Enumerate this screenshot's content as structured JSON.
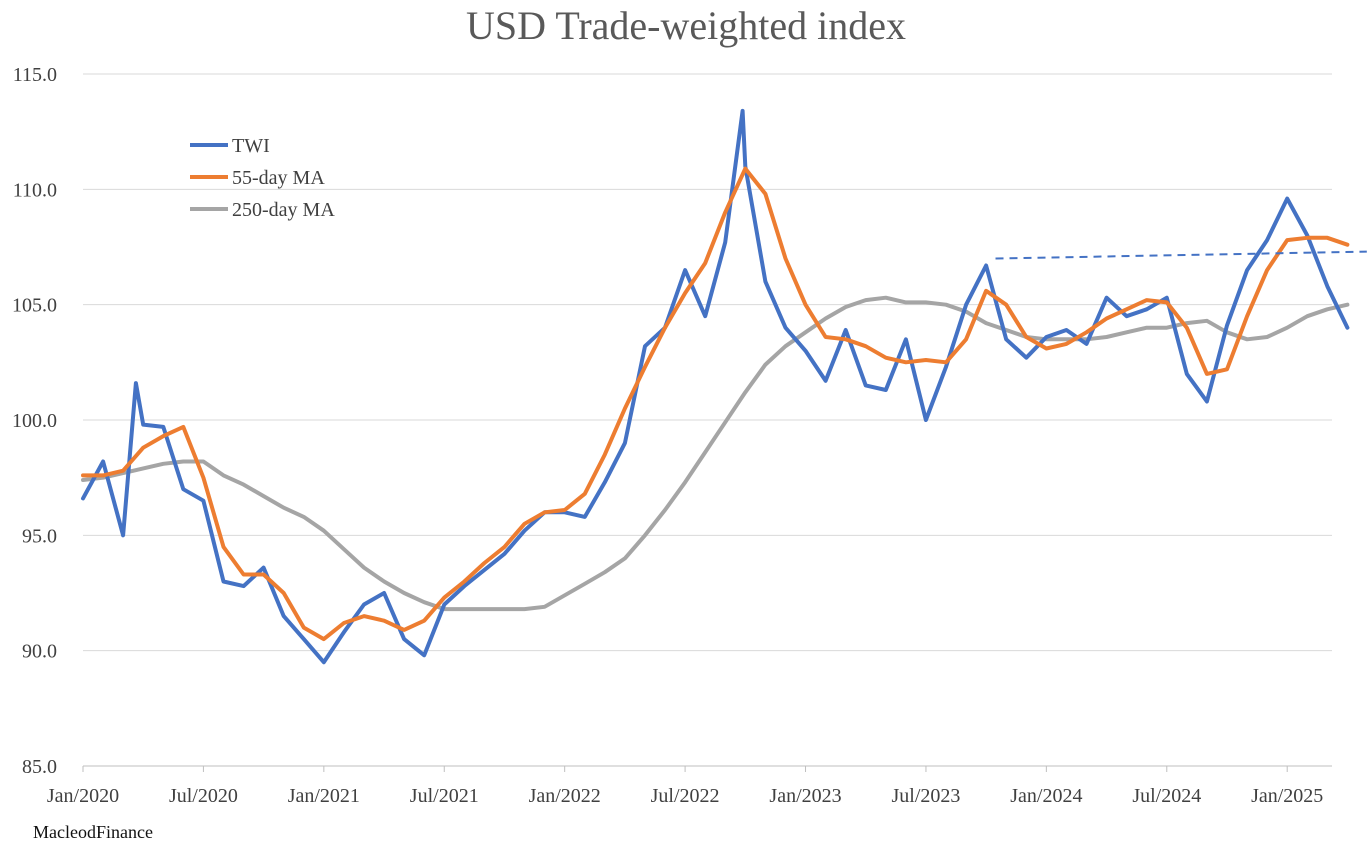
{
  "chart_data": {
    "type": "line",
    "title": "USD Trade-weighted index",
    "xlabel": "",
    "ylabel": "",
    "x_ticks": [
      "Jan/2020",
      "Jul/2020",
      "Jan/2021",
      "Jul/2021",
      "Jan/2022",
      "Jul/2022",
      "Jan/2023",
      "Jul/2023",
      "Jan/2024",
      "Jul/2024",
      "Jan/2025"
    ],
    "y_ticks": [
      "85.0",
      "90.0",
      "95.0",
      "100.0",
      "105.0",
      "110.0",
      "115.0"
    ],
    "ylim": [
      85,
      115
    ],
    "xlim": [
      "2020-01",
      "2025-04"
    ],
    "grid": "horizontal",
    "legend_position": "top-left",
    "series": [
      {
        "name": "TWI",
        "color": "#4472C4",
        "x": [
          "2020-01",
          "2020-02",
          "2020-03",
          "2020-03-20",
          "2020-04",
          "2020-05",
          "2020-06",
          "2020-07",
          "2020-08",
          "2020-09",
          "2020-10",
          "2020-11",
          "2020-12",
          "2021-01",
          "2021-02",
          "2021-03",
          "2021-04",
          "2021-05",
          "2021-06",
          "2021-07",
          "2021-08",
          "2021-09",
          "2021-10",
          "2021-11",
          "2021-12",
          "2022-01",
          "2022-02",
          "2022-03",
          "2022-04",
          "2022-05",
          "2022-06",
          "2022-07",
          "2022-08",
          "2022-09",
          "2022-09-27",
          "2022-10",
          "2022-11",
          "2022-12",
          "2023-01",
          "2023-02",
          "2023-03",
          "2023-04",
          "2023-05",
          "2023-06",
          "2023-07",
          "2023-08",
          "2023-09",
          "2023-10",
          "2023-11",
          "2023-12",
          "2024-01",
          "2024-02",
          "2024-03",
          "2024-04",
          "2024-05",
          "2024-06",
          "2024-07",
          "2024-08",
          "2024-09",
          "2024-10",
          "2024-11",
          "2024-12",
          "2025-01",
          "2025-02",
          "2025-03",
          "2025-04"
        ],
        "values": [
          96.6,
          98.2,
          95.0,
          101.6,
          99.8,
          99.7,
          97.0,
          96.5,
          93.0,
          92.8,
          93.6,
          91.5,
          90.5,
          89.5,
          90.8,
          92.0,
          92.5,
          90.5,
          89.8,
          92.0,
          92.8,
          93.5,
          94.2,
          95.2,
          96.0,
          96.0,
          95.8,
          97.3,
          99.0,
          103.2,
          104.0,
          106.5,
          104.5,
          107.7,
          113.4,
          111.0,
          106.0,
          104.0,
          103.0,
          101.7,
          103.9,
          101.5,
          101.3,
          103.5,
          100.0,
          102.3,
          105.0,
          106.7,
          103.5,
          102.7,
          103.6,
          103.9,
          103.3,
          105.3,
          104.5,
          104.8,
          105.3,
          102.0,
          100.8,
          104.1,
          106.5,
          107.8,
          109.6,
          108.0,
          105.8,
          104.0
        ]
      },
      {
        "name": "55-day MA",
        "color": "#ED7D31",
        "x": [
          "2020-01",
          "2020-02",
          "2020-03",
          "2020-04",
          "2020-05",
          "2020-06",
          "2020-07",
          "2020-08",
          "2020-09",
          "2020-10",
          "2020-11",
          "2020-12",
          "2021-01",
          "2021-02",
          "2021-03",
          "2021-04",
          "2021-05",
          "2021-06",
          "2021-07",
          "2021-08",
          "2021-09",
          "2021-10",
          "2021-11",
          "2021-12",
          "2022-01",
          "2022-02",
          "2022-03",
          "2022-04",
          "2022-05",
          "2022-06",
          "2022-07",
          "2022-08",
          "2022-09",
          "2022-10",
          "2022-11",
          "2022-12",
          "2023-01",
          "2023-02",
          "2023-03",
          "2023-04",
          "2023-05",
          "2023-06",
          "2023-07",
          "2023-08",
          "2023-09",
          "2023-10",
          "2023-11",
          "2023-12",
          "2024-01",
          "2024-02",
          "2024-03",
          "2024-04",
          "2024-05",
          "2024-06",
          "2024-07",
          "2024-08",
          "2024-09",
          "2024-10",
          "2024-11",
          "2024-12",
          "2025-01",
          "2025-02",
          "2025-03",
          "2025-04"
        ],
        "values": [
          97.6,
          97.6,
          97.8,
          98.8,
          99.3,
          99.7,
          97.5,
          94.5,
          93.3,
          93.3,
          92.5,
          91.0,
          90.5,
          91.2,
          91.5,
          91.3,
          90.9,
          91.3,
          92.3,
          93.0,
          93.8,
          94.5,
          95.5,
          96.0,
          96.1,
          96.8,
          98.5,
          100.5,
          102.3,
          104.0,
          105.5,
          106.8,
          109.0,
          110.9,
          109.8,
          107.0,
          105.0,
          103.6,
          103.5,
          103.2,
          102.7,
          102.5,
          102.6,
          102.5,
          103.5,
          105.6,
          105.0,
          103.6,
          103.1,
          103.3,
          103.8,
          104.4,
          104.8,
          105.2,
          105.1,
          104.0,
          102.0,
          102.2,
          104.5,
          106.5,
          107.8,
          107.9,
          107.9,
          107.6
        ]
      },
      {
        "name": "250-day MA",
        "color": "#A5A5A5",
        "x": [
          "2020-01",
          "2020-02",
          "2020-03",
          "2020-04",
          "2020-05",
          "2020-06",
          "2020-07",
          "2020-08",
          "2020-09",
          "2020-10",
          "2020-11",
          "2020-12",
          "2021-01",
          "2021-02",
          "2021-03",
          "2021-04",
          "2021-05",
          "2021-06",
          "2021-07",
          "2021-08",
          "2021-09",
          "2021-10",
          "2021-11",
          "2021-12",
          "2022-01",
          "2022-02",
          "2022-03",
          "2022-04",
          "2022-05",
          "2022-06",
          "2022-07",
          "2022-08",
          "2022-09",
          "2022-10",
          "2022-11",
          "2022-12",
          "2023-01",
          "2023-02",
          "2023-03",
          "2023-04",
          "2023-05",
          "2023-06",
          "2023-07",
          "2023-08",
          "2023-09",
          "2023-10",
          "2023-11",
          "2023-12",
          "2024-01",
          "2024-02",
          "2024-03",
          "2024-04",
          "2024-05",
          "2024-06",
          "2024-07",
          "2024-08",
          "2024-09",
          "2024-10",
          "2024-11",
          "2024-12",
          "2025-01",
          "2025-02",
          "2025-03",
          "2025-04"
        ],
        "values": [
          97.4,
          97.5,
          97.7,
          97.9,
          98.1,
          98.2,
          98.2,
          97.6,
          97.2,
          96.7,
          96.2,
          95.8,
          95.2,
          94.4,
          93.6,
          93.0,
          92.5,
          92.1,
          91.8,
          91.8,
          91.8,
          91.8,
          91.8,
          91.9,
          92.4,
          92.9,
          93.4,
          94.0,
          95.0,
          96.1,
          97.3,
          98.6,
          99.9,
          101.2,
          102.4,
          103.2,
          103.8,
          104.4,
          104.9,
          105.2,
          105.3,
          105.1,
          105.1,
          105.0,
          104.7,
          104.2,
          103.9,
          103.6,
          103.5,
          103.5,
          103.5,
          103.6,
          103.8,
          104.0,
          104.0,
          104.2,
          104.3,
          103.8,
          103.5,
          103.6,
          104.0,
          104.5,
          104.8,
          105.0
        ]
      }
    ],
    "annotations": [
      {
        "type": "dashed-trendline",
        "color": "#4472C4",
        "x": [
          "2023-10-15",
          "2025-04-30"
        ],
        "values": [
          107.0,
          107.3
        ]
      }
    ]
  },
  "legend": {
    "items": [
      {
        "label": "TWI",
        "color": "#4472C4"
      },
      {
        "label": "55-day MA",
        "color": "#ED7D31"
      },
      {
        "label": "250-day MA",
        "color": "#A5A5A5"
      }
    ]
  },
  "source": "MacleodFinance"
}
